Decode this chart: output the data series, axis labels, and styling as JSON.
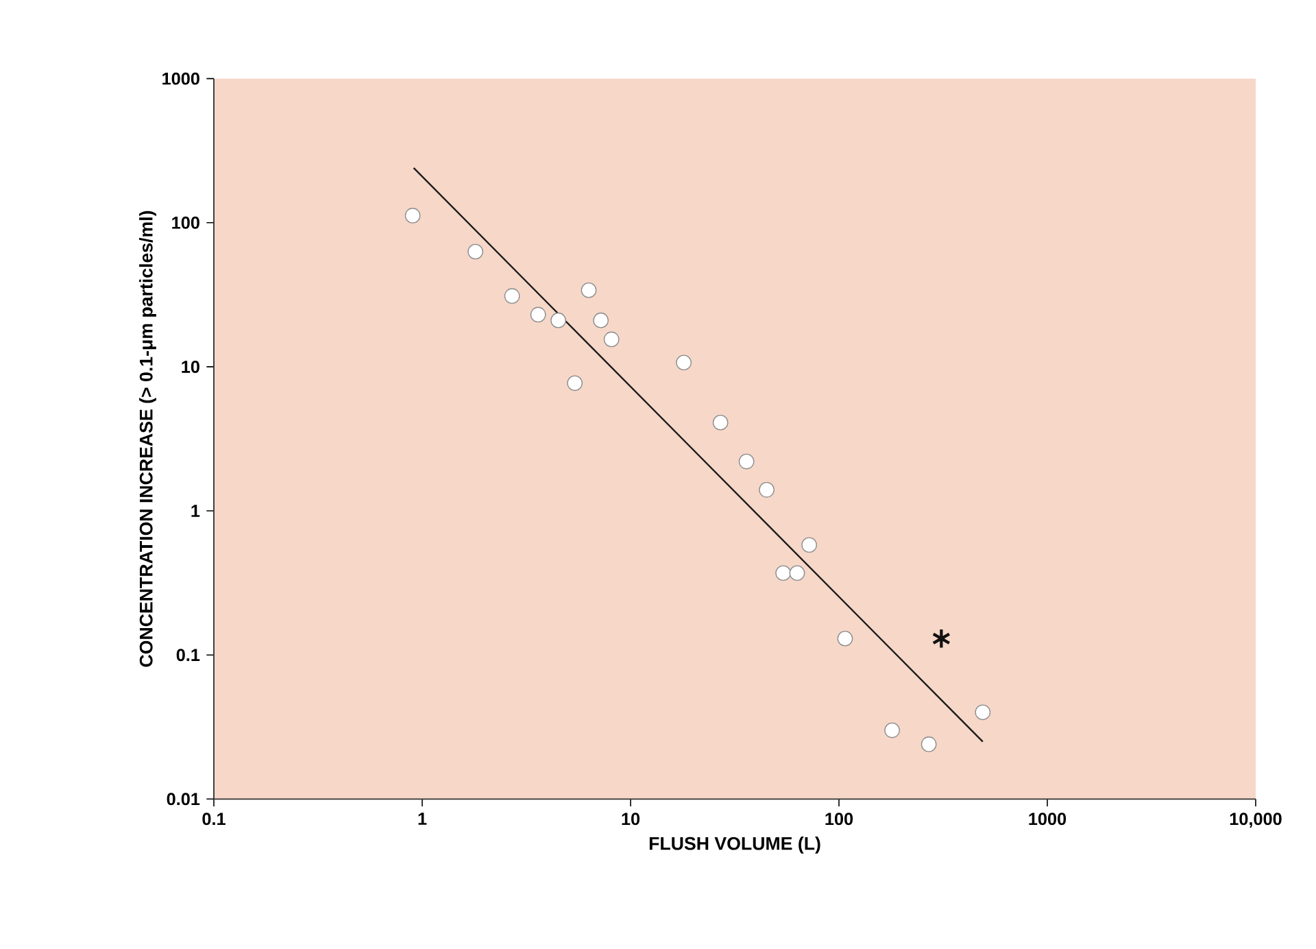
{
  "chart_data": {
    "type": "scatter",
    "xlabel": "FLUSH VOLUME (L)",
    "ylabel": "CONCENTRATION INCREASE (> 0.1-μm particles/ml)",
    "log": "xy",
    "xlim": [
      0.1,
      10000
    ],
    "ylim": [
      0.01,
      1000
    ],
    "xticks": [
      0.1,
      1,
      10,
      100,
      1000,
      {
        "value": 10000,
        "label": "10,000"
      }
    ],
    "yticks": [
      0.01,
      0.1,
      1,
      10,
      100,
      1000
    ],
    "series": [
      {
        "marker": "circle",
        "color": "#ffffff",
        "x": [
          0.9,
          1.8,
          2.7,
          3.6,
          4.5,
          5.4,
          6.3,
          7.2,
          8.1,
          18,
          27,
          36,
          45,
          54,
          63,
          72,
          107,
          180,
          270,
          490
        ],
        "values": [
          112,
          63,
          31,
          23,
          21,
          7.7,
          34,
          21,
          15.5,
          10.7,
          4.1,
          2.2,
          1.4,
          0.37,
          0.37,
          0.58,
          0.13,
          0.03,
          0.024,
          0.04
        ]
      },
      {
        "marker": "cross",
        "color": "#111111",
        "x": [
          310
        ],
        "values": [
          0.13
        ]
      },
      {
        "type": "line",
        "color": "#1a1a1a",
        "x": [
          0.91,
          490
        ],
        "values": [
          240,
          0.025
        ]
      }
    ]
  }
}
